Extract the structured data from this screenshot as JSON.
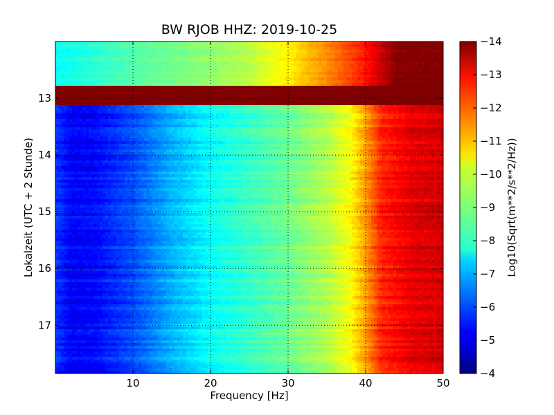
{
  "chart_data": {
    "type": "heatmap",
    "title": "BW RJOB HHZ: 2019-10-25",
    "xlabel": "Frequency [Hz]",
    "ylabel": "Lokalzeit (UTC + 2 Stunde)",
    "colorbar_label": "Log10(Sqrt(m**2/s**2/Hz))",
    "xlim": [
      0,
      50
    ],
    "ylim": [
      12.0,
      17.85
    ],
    "y_inverted": true,
    "x_ticks": [
      10,
      20,
      30,
      40,
      50
    ],
    "y_ticks": [
      13,
      14,
      15,
      16,
      17
    ],
    "colorbar_range": [
      -14,
      -4
    ],
    "colorbar_ticks": [
      -4,
      -5,
      -6,
      -7,
      -8,
      -9,
      -10,
      -11,
      -12,
      -13,
      -14
    ],
    "colormap": "jet",
    "grid": true,
    "data_gap": {
      "y_start": 12.8,
      "y_end": 13.12,
      "value": -14
    },
    "spectrum_profile": {
      "frequency": [
        0,
        2,
        5,
        10,
        15,
        20,
        25,
        30,
        35,
        38,
        40,
        42,
        44,
        46,
        50
      ],
      "value": [
        -5.8,
        -5.2,
        -5.3,
        -6.0,
        -7.0,
        -7.8,
        -8.3,
        -8.8,
        -9.5,
        -10.2,
        -11.2,
        -12.4,
        -12.7,
        -13.0,
        -13.2
      ]
    },
    "early_segment_profile": {
      "y_range": [
        12.0,
        12.8
      ],
      "frequency": [
        0,
        5,
        10,
        20,
        25,
        30,
        35,
        40,
        44,
        50
      ],
      "value": [
        -7.8,
        -8.2,
        -8.6,
        -9.2,
        -9.6,
        -10.4,
        -11.4,
        -12.6,
        -14,
        -14
      ]
    }
  }
}
